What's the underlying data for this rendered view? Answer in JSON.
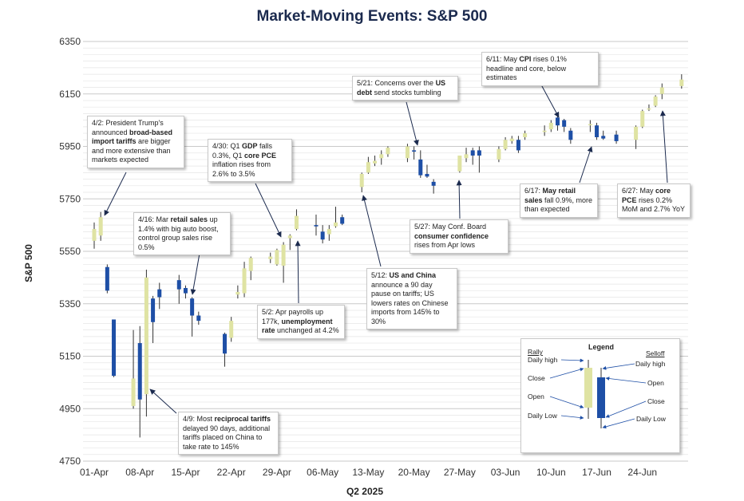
{
  "chart_data": {
    "type": "candlestick",
    "title": "Market-Moving Events: S&P 500",
    "xlabel": "Q2 2025",
    "ylabel": "S&P 500",
    "ylim": [
      4750,
      6350
    ],
    "yticks": [
      4750,
      4950,
      5150,
      5350,
      5550,
      5750,
      5950,
      6150,
      6350
    ],
    "xticks": [
      "01-Apr",
      "08-Apr",
      "15-Apr",
      "22-Apr",
      "29-Apr",
      "06-May",
      "13-May",
      "20-May",
      "27-May",
      "03-Jun",
      "10-Jun",
      "17-Jun",
      "24-Jun"
    ],
    "colors": {
      "rally": "#dfe3a3",
      "selloff": "#1e4fa6",
      "wick": "#333333"
    },
    "candles": [
      {
        "day": 0,
        "open": 5590,
        "close": 5635,
        "high": 5660,
        "low": 5560
      },
      {
        "day": 1,
        "open": 5610,
        "close": 5680,
        "high": 5700,
        "low": 5590
      },
      {
        "day": 2,
        "open": 5490,
        "close": 5400,
        "high": 5500,
        "low": 5390
      },
      {
        "day": 3,
        "open": 5290,
        "close": 5075,
        "high": 5290,
        "low": 5070
      },
      {
        "day": 6,
        "open": 4960,
        "close": 5065,
        "high": 5250,
        "low": 4950
      },
      {
        "day": 7,
        "open": 5200,
        "close": 4985,
        "high": 5265,
        "low": 4840
      },
      {
        "day": 8,
        "open": 5005,
        "close": 5450,
        "high": 5480,
        "low": 4920
      },
      {
        "day": 9,
        "open": 5370,
        "close": 5280,
        "high": 5380,
        "low": 5200
      },
      {
        "day": 10,
        "open": 5405,
        "close": 5375,
        "high": 5430,
        "low": 5330
      },
      {
        "day": 13,
        "open": 5440,
        "close": 5405,
        "high": 5460,
        "low": 5350
      },
      {
        "day": 14,
        "open": 5410,
        "close": 5390,
        "high": 5420,
        "low": 5370
      },
      {
        "day": 15,
        "open": 5370,
        "close": 5305,
        "high": 5375,
        "low": 5225
      },
      {
        "day": 16,
        "open": 5305,
        "close": 5285,
        "high": 5320,
        "low": 5270
      },
      {
        "day": 20,
        "open": 5235,
        "close": 5160,
        "high": 5240,
        "low": 5110
      },
      {
        "day": 21,
        "open": 5220,
        "close": 5285,
        "high": 5300,
        "low": 5205
      },
      {
        "day": 22,
        "open": 5385,
        "close": 5395,
        "high": 5420,
        "low": 5370
      },
      {
        "day": 23,
        "open": 5390,
        "close": 5485,
        "high": 5510,
        "low": 5375
      },
      {
        "day": 24,
        "open": 5475,
        "close": 5525,
        "high": 5530,
        "low": 5440
      },
      {
        "day": 27,
        "open": 5520,
        "close": 5530,
        "high": 5545,
        "low": 5505
      },
      {
        "day": 28,
        "open": 5500,
        "close": 5555,
        "high": 5560,
        "low": 5495
      },
      {
        "day": 29,
        "open": 5495,
        "close": 5575,
        "high": 5585,
        "low": 5430
      },
      {
        "day": 30,
        "open": 5600,
        "close": 5610,
        "high": 5615,
        "low": 5555
      },
      {
        "day": 31,
        "open": 5635,
        "close": 5685,
        "high": 5710,
        "low": 5630
      },
      {
        "day": 34,
        "open": 5650,
        "close": 5645,
        "high": 5690,
        "low": 5610
      },
      {
        "day": 35,
        "open": 5625,
        "close": 5595,
        "high": 5650,
        "low": 5580
      },
      {
        "day": 36,
        "open": 5615,
        "close": 5635,
        "high": 5650,
        "low": 5590
      },
      {
        "day": 37,
        "open": 5645,
        "close": 5660,
        "high": 5720,
        "low": 5640
      },
      {
        "day": 38,
        "open": 5680,
        "close": 5655,
        "high": 5690,
        "low": 5650
      },
      {
        "day": 41,
        "open": 5795,
        "close": 5845,
        "high": 5850,
        "low": 5775
      },
      {
        "day": 42,
        "open": 5850,
        "close": 5890,
        "high": 5910,
        "low": 5845
      },
      {
        "day": 43,
        "open": 5885,
        "close": 5895,
        "high": 5915,
        "low": 5875
      },
      {
        "day": 44,
        "open": 5905,
        "close": 5920,
        "high": 5935,
        "low": 5880
      },
      {
        "day": 45,
        "open": 5920,
        "close": 5945,
        "high": 5950,
        "low": 5910
      },
      {
        "day": 48,
        "open": 5905,
        "close": 5950,
        "high": 5960,
        "low": 5890
      },
      {
        "day": 49,
        "open": 5935,
        "close": 5930,
        "high": 5950,
        "low": 5900
      },
      {
        "day": 50,
        "open": 5900,
        "close": 5840,
        "high": 5935,
        "low": 5830
      },
      {
        "day": 51,
        "open": 5845,
        "close": 5835,
        "high": 5880,
        "low": 5830
      },
      {
        "day": 52,
        "open": 5815,
        "close": 5800,
        "high": 5825,
        "low": 5770
      },
      {
        "day": 56,
        "open": 5855,
        "close": 5915,
        "high": 5915,
        "low": 5850
      },
      {
        "day": 57,
        "open": 5905,
        "close": 5920,
        "high": 5945,
        "low": 5890
      },
      {
        "day": 58,
        "open": 5935,
        "close": 5915,
        "high": 5945,
        "low": 5880
      },
      {
        "day": 59,
        "open": 5935,
        "close": 5915,
        "high": 5950,
        "low": 5850
      },
      {
        "day": 62,
        "open": 5900,
        "close": 5940,
        "high": 5950,
        "low": 5890
      },
      {
        "day": 63,
        "open": 5940,
        "close": 5975,
        "high": 5985,
        "low": 5935
      },
      {
        "day": 64,
        "open": 5970,
        "close": 5980,
        "high": 5990,
        "low": 5960
      },
      {
        "day": 65,
        "open": 5975,
        "close": 5935,
        "high": 5990,
        "low": 5925
      },
      {
        "day": 66,
        "open": 5985,
        "close": 6000,
        "high": 6010,
        "low": 5975
      },
      {
        "day": 69,
        "open": 6005,
        "close": 6010,
        "high": 6030,
        "low": 5990
      },
      {
        "day": 70,
        "open": 6015,
        "close": 6040,
        "high": 6050,
        "low": 6005
      },
      {
        "day": 71,
        "open": 6060,
        "close": 6030,
        "high": 6065,
        "low": 6010
      },
      {
        "day": 72,
        "open": 6050,
        "close": 6025,
        "high": 6055,
        "low": 6005
      },
      {
        "day": 73,
        "open": 6010,
        "close": 5975,
        "high": 6020,
        "low": 5960
      },
      {
        "day": 76,
        "open": 6035,
        "close": 6035,
        "high": 6050,
        "low": 6005
      },
      {
        "day": 77,
        "open": 6030,
        "close": 5985,
        "high": 6040,
        "low": 5975
      },
      {
        "day": 78,
        "open": 5990,
        "close": 5980,
        "high": 6010,
        "low": 5975
      },
      {
        "day": 80,
        "open": 5995,
        "close": 5970,
        "high": 6010,
        "low": 5960
      },
      {
        "day": 83,
        "open": 5975,
        "close": 6025,
        "high": 6030,
        "low": 5940
      },
      {
        "day": 84,
        "open": 6025,
        "close": 6085,
        "high": 6090,
        "low": 6020
      },
      {
        "day": 85,
        "open": 6095,
        "close": 6095,
        "high": 6110,
        "low": 6085
      },
      {
        "day": 86,
        "open": 6105,
        "close": 6140,
        "high": 6145,
        "low": 6100
      },
      {
        "day": 87,
        "open": 6150,
        "close": 6175,
        "high": 6190,
        "low": 6130
      },
      {
        "day": 90,
        "open": 6180,
        "close": 6205,
        "high": 6225,
        "low": 6170
      }
    ]
  },
  "annotations": [
    {
      "id": "apr2",
      "parts": [
        [
          "4/2: President Trump's announced ",
          false
        ],
        [
          "broad-based import tariffs",
          true
        ],
        [
          " are bigger and more extensive than markets expected",
          false
        ]
      ]
    },
    {
      "id": "apr30",
      "parts": [
        [
          "4/30: Q1 ",
          false
        ],
        [
          "GDP",
          true
        ],
        [
          " falls 0.3%, Q1 ",
          false
        ],
        [
          "core PCE",
          true
        ],
        [
          " inflation rises from 2.6% to 3.5%",
          false
        ]
      ]
    },
    {
      "id": "apr16",
      "parts": [
        [
          "4/16: Mar ",
          false
        ],
        [
          "retail sales",
          true
        ],
        [
          " up 1.4% with big auto boost, control group sales rise 0.5%",
          false
        ]
      ]
    },
    {
      "id": "may21",
      "parts": [
        [
          "5/21: Concerns over the ",
          false
        ],
        [
          "US debt",
          true
        ],
        [
          " send stocks tumbling",
          false
        ]
      ]
    },
    {
      "id": "jun11",
      "parts": [
        [
          "6/11: May ",
          false
        ],
        [
          "CPI",
          true
        ],
        [
          " rises 0.1% headline and core, below estimates",
          false
        ]
      ]
    },
    {
      "id": "jun17",
      "parts": [
        [
          "6/17: ",
          false
        ],
        [
          "May retail sales",
          true
        ],
        [
          " fall 0.9%, more than expected",
          false
        ]
      ]
    },
    {
      "id": "jun27",
      "parts": [
        [
          "6/27: May ",
          false
        ],
        [
          "core PCE",
          true
        ],
        [
          " rises 0.2% MoM and 2.7% YoY",
          false
        ]
      ]
    },
    {
      "id": "may27",
      "parts": [
        [
          "5/27: May Conf. Board ",
          false
        ],
        [
          "consumer confidence",
          true
        ],
        [
          " rises from Apr lows",
          false
        ]
      ]
    },
    {
      "id": "may12",
      "parts": [
        [
          "5/12: ",
          false
        ],
        [
          "US and China",
          true
        ],
        [
          " announce a 90 day pause on tariffs; US lowers rates on Chinese imports from 145% to 30%",
          false
        ]
      ]
    },
    {
      "id": "may2",
      "parts": [
        [
          "5/2: Apr payrolls up 177k, ",
          false
        ],
        [
          "unemployment rate",
          true
        ],
        [
          " unchanged at 4.2%",
          false
        ]
      ]
    },
    {
      "id": "apr9",
      "parts": [
        [
          "4/9: Most ",
          false
        ],
        [
          "reciprocal tariffs",
          true
        ],
        [
          " delayed 90 days, additional tariffs placed on China to take rate to 145%",
          false
        ]
      ]
    }
  ],
  "legend": {
    "title": "Legend",
    "rally": "Rally",
    "selloff": "Selloff",
    "rally_labels": [
      "Daily high",
      "Close",
      "Open",
      "Daily Low"
    ],
    "selloff_labels": [
      "Daily high",
      "Open",
      "Close",
      "Daily Low"
    ]
  }
}
